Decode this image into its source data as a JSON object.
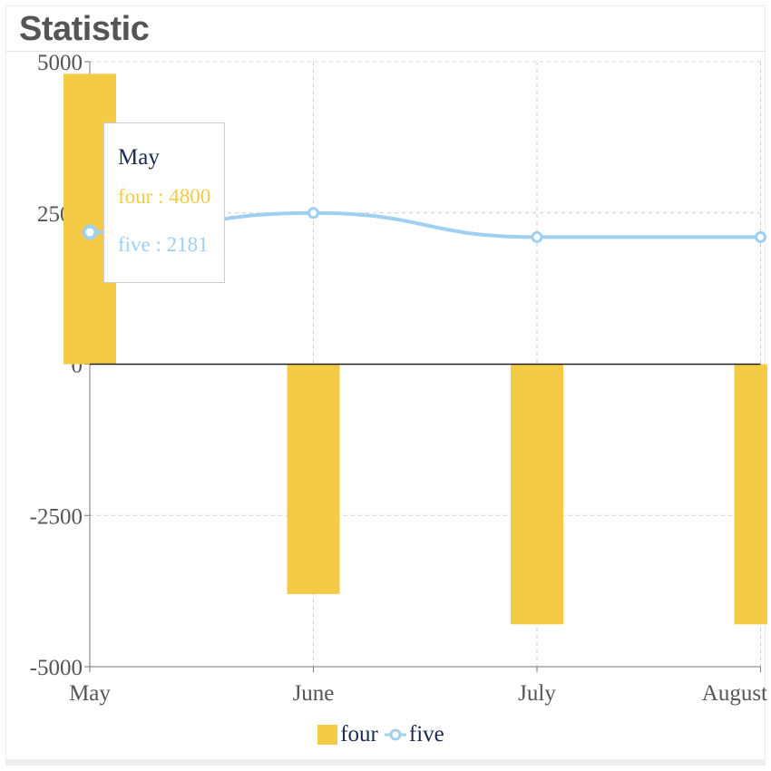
{
  "header": {
    "title": "Statistic"
  },
  "chart_data": {
    "type": "bar+line",
    "categories": [
      "May",
      "June",
      "July",
      "August"
    ],
    "series": [
      {
        "name": "four",
        "type": "bar",
        "color": "#f5cb45",
        "values": [
          4800,
          -3800,
          -4300,
          -4300
        ]
      },
      {
        "name": "five",
        "type": "line",
        "color": "#9fd0f2",
        "values": [
          2181,
          2500,
          2100,
          2100
        ]
      }
    ],
    "y_ticks": [
      5000,
      2500,
      0,
      -2500,
      -5000
    ],
    "y_tick_labels": [
      "5000",
      "2500",
      "0",
      "-2500",
      "-5000"
    ],
    "ylim": [
      -5000,
      5000
    ],
    "grid": true,
    "legend_position": "bottom"
  },
  "tooltip": {
    "title": "May",
    "rows": [
      "four : 4800",
      "five : 2181"
    ]
  },
  "legend": {
    "items": [
      "four",
      "five"
    ]
  }
}
